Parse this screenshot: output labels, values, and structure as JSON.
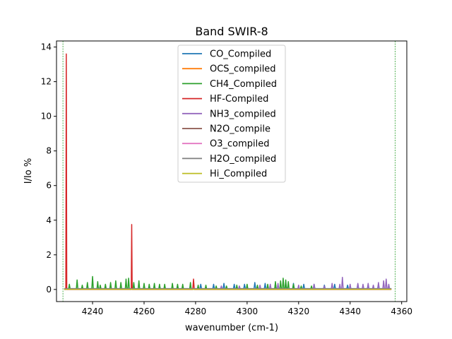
{
  "chart_data": {
    "type": "line",
    "title": "Band SWIR-8",
    "xlabel": "wavenumber (cm-1)",
    "ylabel": "I/Io %",
    "xlim": [
      4226,
      4362
    ],
    "ylim": [
      -0.7,
      14.35
    ],
    "xticks": [
      4240,
      4260,
      4280,
      4300,
      4320,
      4340,
      4360
    ],
    "yticks": [
      0,
      2,
      4,
      6,
      8,
      10,
      12,
      14
    ],
    "grid": false,
    "legend_position": "top-center",
    "vlines": [
      {
        "x": 4228.5,
        "color": "#2ca02c",
        "style": "dashed"
      },
      {
        "x": 4357.5,
        "color": "#2ca02c",
        "style": "dashed"
      }
    ],
    "series": [
      {
        "name": "CO_Compiled",
        "color": "#1f77b4",
        "baseline": 0.05,
        "peaks": [
          [
            4282,
            0.3
          ],
          [
            4287,
            0.3
          ],
          [
            4291,
            0.35
          ],
          [
            4295,
            0.3
          ],
          [
            4299,
            0.3
          ],
          [
            4303,
            0.4
          ],
          [
            4307,
            0.35
          ],
          [
            4311,
            0.35
          ],
          [
            4315,
            0.4
          ],
          [
            4318,
            0.35
          ],
          [
            4322,
            0.3
          ],
          [
            4326,
            0.3
          ],
          [
            4330,
            0.25
          ],
          [
            4334,
            0.3
          ],
          [
            4339,
            0.25
          ],
          [
            4343,
            0.3
          ],
          [
            4347,
            0.25
          ],
          [
            4351,
            0.3
          ]
        ]
      },
      {
        "name": "OCS_compiled",
        "color": "#ff7f0e",
        "baseline": 0.03,
        "peaks": []
      },
      {
        "name": "CH4_Compiled",
        "color": "#2ca02c",
        "baseline": 0.02,
        "peaks": [
          [
            4231,
            0.3
          ],
          [
            4234,
            0.55
          ],
          [
            4236,
            0.25
          ],
          [
            4238,
            0.4
          ],
          [
            4240,
            0.75
          ],
          [
            4242,
            0.45
          ],
          [
            4243,
            0.25
          ],
          [
            4245,
            0.3
          ],
          [
            4247,
            0.4
          ],
          [
            4249,
            0.5
          ],
          [
            4251,
            0.4
          ],
          [
            4253,
            0.6
          ],
          [
            4254,
            0.65
          ],
          [
            4256,
            0.4
          ],
          [
            4258,
            0.5
          ],
          [
            4260,
            0.35
          ],
          [
            4262,
            0.3
          ],
          [
            4264,
            0.35
          ],
          [
            4266,
            0.3
          ],
          [
            4268,
            0.3
          ],
          [
            4271,
            0.35
          ],
          [
            4273,
            0.3
          ],
          [
            4275,
            0.3
          ],
          [
            4278,
            0.4
          ],
          [
            4281,
            0.25
          ],
          [
            4284,
            0.25
          ],
          [
            4288,
            0.2
          ],
          [
            4292,
            0.2
          ],
          [
            4296,
            0.25
          ],
          [
            4300,
            0.3
          ],
          [
            4304,
            0.25
          ],
          [
            4308,
            0.3
          ],
          [
            4311,
            0.45
          ],
          [
            4313,
            0.5
          ],
          [
            4314,
            0.65
          ],
          [
            4315,
            0.55
          ],
          [
            4316,
            0.45
          ],
          [
            4318,
            0.3
          ],
          [
            4321,
            0.2
          ],
          [
            4325,
            0.2
          ]
        ]
      },
      {
        "name": "HF-Compiled",
        "color": "#d62728",
        "baseline": 0.0,
        "peaks": [
          [
            4229.8,
            13.6
          ],
          [
            4255.2,
            3.75
          ],
          [
            4279.2,
            0.6
          ]
        ]
      },
      {
        "name": "NH3_compiled",
        "color": "#9467bd",
        "baseline": 0.04,
        "peaks": [
          [
            4290,
            0.2
          ],
          [
            4297,
            0.2
          ],
          [
            4305,
            0.25
          ],
          [
            4309,
            0.3
          ],
          [
            4312,
            0.35
          ],
          [
            4320,
            0.25
          ],
          [
            4326,
            0.3
          ],
          [
            4330,
            0.2
          ],
          [
            4333,
            0.35
          ],
          [
            4336,
            0.3
          ],
          [
            4337,
            0.7
          ],
          [
            4340,
            0.3
          ],
          [
            4343,
            0.35
          ],
          [
            4345,
            0.3
          ],
          [
            4347,
            0.35
          ],
          [
            4349,
            0.25
          ],
          [
            4351,
            0.4
          ],
          [
            4353,
            0.5
          ],
          [
            4354,
            0.6
          ],
          [
            4355,
            0.3
          ]
        ]
      },
      {
        "name": "N2O_compile",
        "color": "#8c564b",
        "baseline": 0.02,
        "peaks": []
      },
      {
        "name": "O3_compiled",
        "color": "#e377c2",
        "baseline": 0.02,
        "peaks": []
      },
      {
        "name": "H2O_compiled",
        "color": "#7f7f7f",
        "baseline": 0.03,
        "peaks": []
      },
      {
        "name": "Hi_Compiled",
        "color": "#bcbd22",
        "baseline": 0.01,
        "peaks": []
      }
    ]
  }
}
